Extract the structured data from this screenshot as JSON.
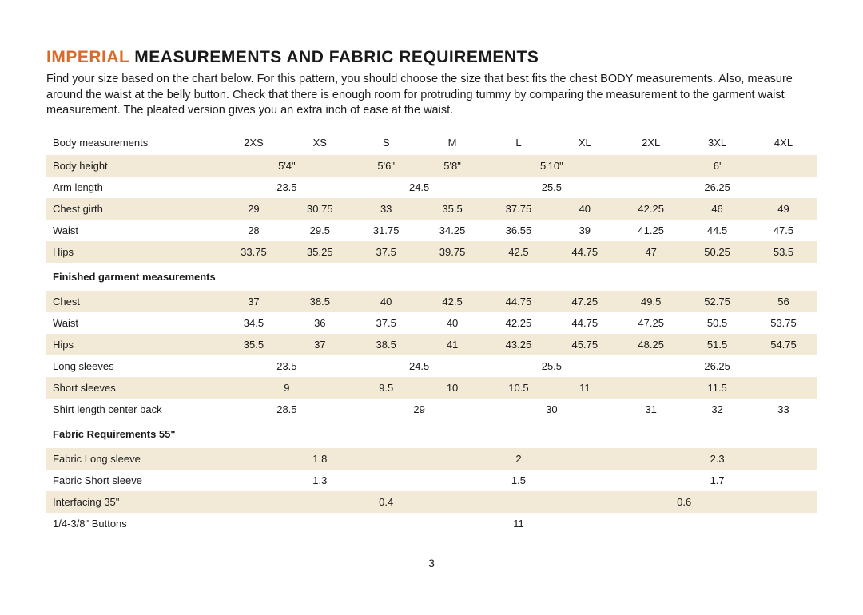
{
  "title_accent": "IMPERIAL",
  "title_rest": " MEASUREMENTS AND FABRIC REQUIREMENTS",
  "intro": "Find your size based on the chart below. For this pattern, you should choose the size that best fits the chest BODY measurements. Also, measure around the waist at the belly button. Check that there is enough room for protruding tummy by comparing the measurement to the garment waist measurement. The pleated version gives you an extra inch of ease at the waist.",
  "header_label": "Body measurements",
  "sizes": [
    "2XS",
    "XS",
    "S",
    "M",
    "L",
    "XL",
    "2XL",
    "3XL",
    "4XL"
  ],
  "body_rows": {
    "body_height": {
      "label": "Body height",
      "cells": [
        {
          "v": "5'4\"",
          "span": 2
        },
        {
          "v": "5'6\"",
          "span": 1
        },
        {
          "v": "5'8\"",
          "span": 1
        },
        {
          "v": "5'10\"",
          "span": 2
        },
        {
          "v": "6'",
          "span": 3
        }
      ]
    },
    "arm_length": {
      "label": "Arm length",
      "cells": [
        {
          "v": "23.5",
          "span": 2
        },
        {
          "v": "24.5",
          "span": 2
        },
        {
          "v": "25.5",
          "span": 2
        },
        {
          "v": "26.25",
          "span": 3
        }
      ]
    },
    "chest_girth": {
      "label": "Chest girth",
      "cells": [
        {
          "v": "29"
        },
        {
          "v": "30.75"
        },
        {
          "v": "33"
        },
        {
          "v": "35.5"
        },
        {
          "v": "37.75"
        },
        {
          "v": "40"
        },
        {
          "v": "42.25"
        },
        {
          "v": "46"
        },
        {
          "v": "49"
        }
      ]
    },
    "waist": {
      "label": "Waist",
      "cells": [
        {
          "v": "28"
        },
        {
          "v": "29.5"
        },
        {
          "v": "31.75"
        },
        {
          "v": "34.25"
        },
        {
          "v": "36.55"
        },
        {
          "v": "39"
        },
        {
          "v": "41.25"
        },
        {
          "v": "44.5"
        },
        {
          "v": "47.5"
        }
      ]
    },
    "hips": {
      "label": "Hips",
      "cells": [
        {
          "v": "33.75"
        },
        {
          "v": "35.25"
        },
        {
          "v": "37.5"
        },
        {
          "v": "39.75"
        },
        {
          "v": "42.5"
        },
        {
          "v": "44.75"
        },
        {
          "v": "47"
        },
        {
          "v": "50.25"
        },
        {
          "v": "53.5"
        }
      ]
    }
  },
  "section_finished": "Finished garment measurements",
  "finished_rows": {
    "chest": {
      "label": "Chest",
      "cells": [
        {
          "v": "37"
        },
        {
          "v": "38.5"
        },
        {
          "v": "40"
        },
        {
          "v": "42.5"
        },
        {
          "v": "44.75"
        },
        {
          "v": "47.25"
        },
        {
          "v": "49.5"
        },
        {
          "v": "52.75"
        },
        {
          "v": "56"
        }
      ]
    },
    "waist": {
      "label": "Waist",
      "cells": [
        {
          "v": "34.5"
        },
        {
          "v": "36"
        },
        {
          "v": "37.5"
        },
        {
          "v": "40"
        },
        {
          "v": "42.25"
        },
        {
          "v": "44.75"
        },
        {
          "v": "47.25"
        },
        {
          "v": "50.5"
        },
        {
          "v": "53.75"
        }
      ]
    },
    "hips": {
      "label": "Hips",
      "cells": [
        {
          "v": "35.5"
        },
        {
          "v": "37"
        },
        {
          "v": "38.5"
        },
        {
          "v": "41"
        },
        {
          "v": "43.25"
        },
        {
          "v": "45.75"
        },
        {
          "v": "48.25"
        },
        {
          "v": "51.5"
        },
        {
          "v": "54.75"
        }
      ]
    },
    "long_sleeves": {
      "label": "Long sleeves",
      "cells": [
        {
          "v": "23.5",
          "span": 2
        },
        {
          "v": "24.5",
          "span": 2
        },
        {
          "v": "25.5",
          "span": 2
        },
        {
          "v": "26.25",
          "span": 3
        }
      ]
    },
    "short_sleeves": {
      "label": "Short sleeves",
      "cells": [
        {
          "v": "9",
          "span": 2
        },
        {
          "v": "9.5",
          "span": 1
        },
        {
          "v": "10",
          "span": 1
        },
        {
          "v": "10.5",
          "span": 1
        },
        {
          "v": "11",
          "span": 1
        },
        {
          "v": "11.5",
          "span": 3
        }
      ]
    },
    "shirt_length": {
      "label": "Shirt length center back",
      "cells": [
        {
          "v": "28.5",
          "span": 2
        },
        {
          "v": "29",
          "span": 2
        },
        {
          "v": "30",
          "span": 2
        },
        {
          "v": "31",
          "span": 1
        },
        {
          "v": "32",
          "span": 1
        },
        {
          "v": "33",
          "span": 1
        }
      ]
    }
  },
  "section_fabric": "Fabric Requirements 55\"",
  "fabric_rows": {
    "long": {
      "label": "Fabric Long sleeve",
      "cells": [
        {
          "v": "1.8",
          "span": 3
        },
        {
          "v": "2",
          "span": 3
        },
        {
          "v": "2.3",
          "span": 3
        }
      ]
    },
    "short": {
      "label": "Fabric Short sleeve",
      "cells": [
        {
          "v": "1.3",
          "span": 3
        },
        {
          "v": "1.5",
          "span": 3
        },
        {
          "v": "1.7",
          "span": 3
        }
      ]
    },
    "interfacing": {
      "label": "Interfacing 35\"",
      "cells": [
        {
          "v": "0.4",
          "span": 5
        },
        {
          "v": "0.6",
          "span": 4
        }
      ]
    },
    "buttons": {
      "label": "1/4-3/8\" Buttons",
      "cells": [
        {
          "v": "11",
          "span": 9
        }
      ]
    }
  },
  "page_number": "3",
  "colors": {
    "accent": "#d86b2c",
    "stripe": "#f2ead7",
    "text": "#1a1a1a",
    "background": "#ffffff"
  }
}
